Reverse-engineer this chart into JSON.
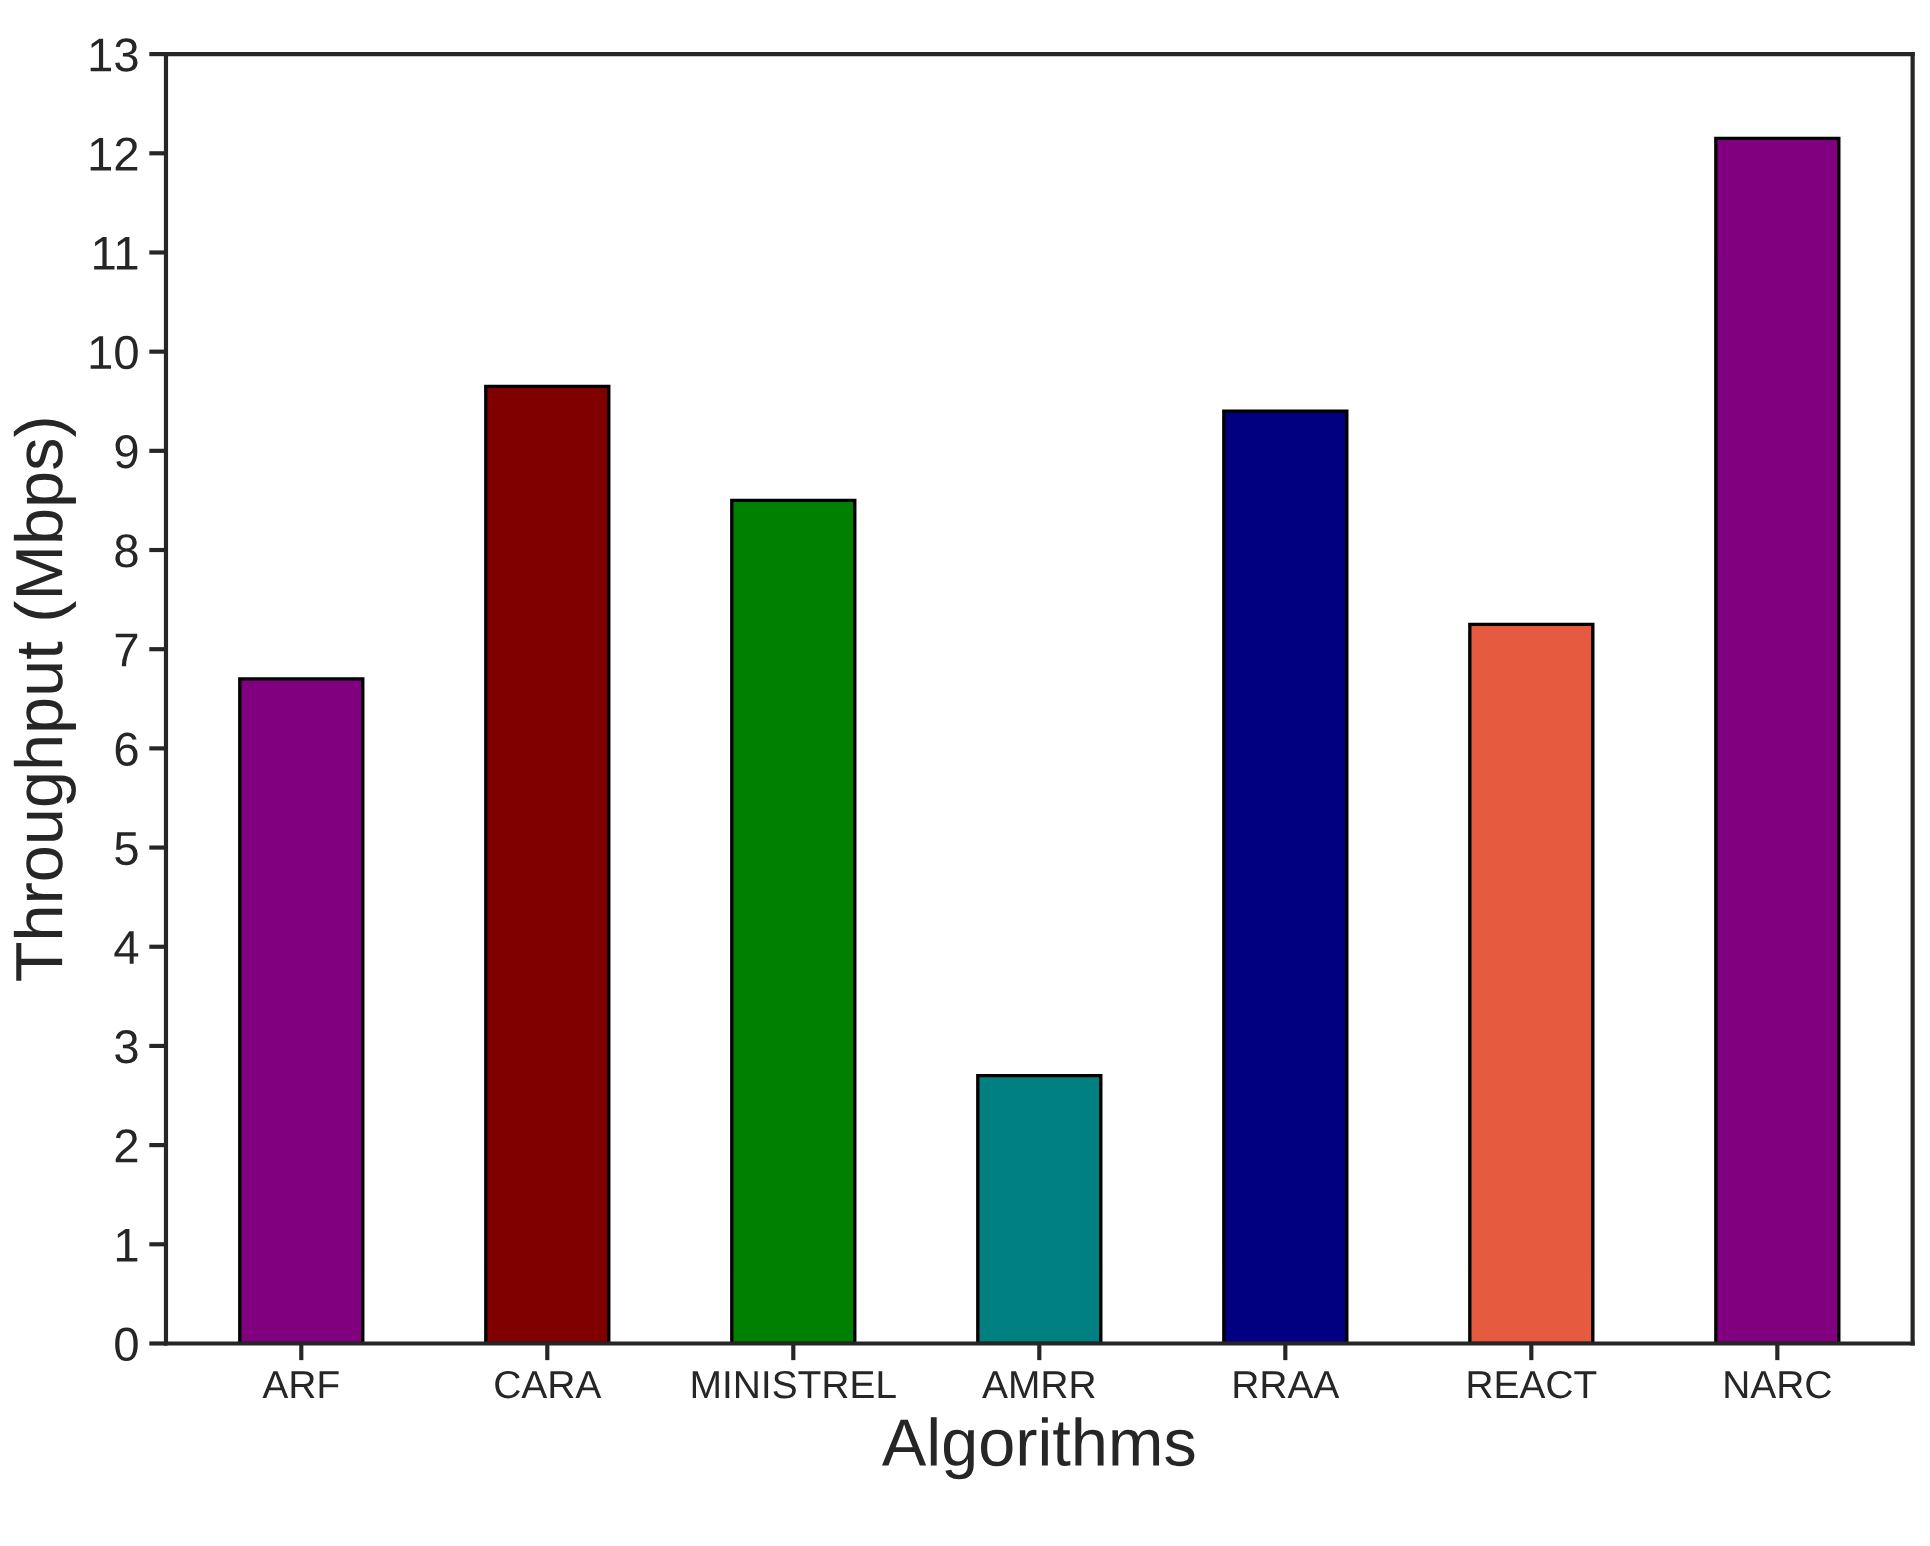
{
  "chart_data": {
    "type": "bar",
    "xlabel": "Algorithms",
    "ylabel": "Throughput (Mbps)",
    "categories": [
      "ARF",
      "CARA",
      "MINISTREL",
      "AMRR",
      "RRAA",
      "REACT",
      "NARC"
    ],
    "values": [
      6.7,
      9.65,
      8.5,
      2.7,
      9.4,
      7.25,
      12.15
    ],
    "colors": [
      "#800080",
      "#800000",
      "#008000",
      "#008080",
      "#000080",
      "#e65a3f",
      "#800080"
    ],
    "ylim": [
      0,
      13
    ],
    "yticks": [
      0,
      1,
      2,
      3,
      4,
      5,
      6,
      7,
      8,
      9,
      10,
      11,
      12,
      13
    ],
    "grid": false,
    "legend": false
  }
}
